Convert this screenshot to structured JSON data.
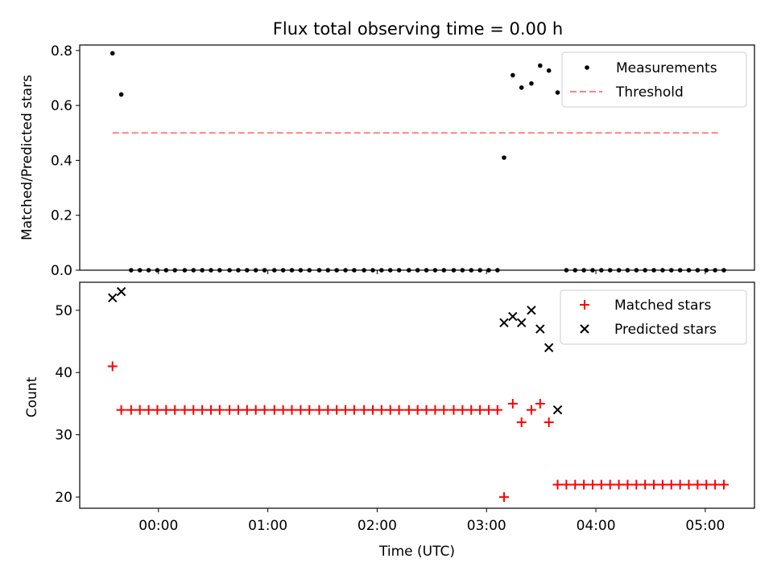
{
  "figure_title": "Flux total observing time = 0.00 h",
  "chart_data": [
    {
      "type": "scatter",
      "panel": "top",
      "title": "Flux total observing time = 0.00 h",
      "xlabel": "",
      "ylabel": "Matched/Predicted stars",
      "xlim": [
        -0.72,
        5.45
      ],
      "ylim": [
        0,
        0.82
      ],
      "yticks": [
        0.0,
        0.2,
        0.4,
        0.6,
        0.8
      ],
      "ytick_labels": [
        "0.0",
        "0.2",
        "0.4",
        "0.6",
        "0.8"
      ],
      "legend_position": "top-right",
      "series": [
        {
          "name": "Measurements",
          "marker": "dot",
          "color": "#000000",
          "x": [
            -0.42,
            -0.34,
            -0.25,
            -0.17,
            -0.09,
            -0.01,
            0.07,
            0.15,
            0.24,
            0.32,
            0.4,
            0.48,
            0.56,
            0.65,
            0.73,
            0.81,
            0.89,
            0.97,
            1.06,
            1.14,
            1.22,
            1.3,
            1.38,
            1.47,
            1.55,
            1.63,
            1.71,
            1.79,
            1.88,
            1.96,
            2.04,
            2.12,
            2.2,
            2.29,
            2.37,
            2.45,
            2.53,
            2.61,
            2.7,
            2.78,
            2.86,
            2.94,
            3.02,
            3.1,
            3.16,
            3.24,
            3.32,
            3.41,
            3.49,
            3.57,
            3.65,
            3.73,
            3.81,
            3.89,
            3.97,
            4.05,
            4.13,
            4.21,
            4.29,
            4.37,
            4.45,
            4.53,
            4.61,
            4.69,
            4.77,
            4.85,
            4.93,
            5.01,
            5.09,
            5.17
          ],
          "y": [
            0.79,
            0.64,
            0,
            0,
            0,
            0,
            0,
            0,
            0,
            0,
            0,
            0,
            0,
            0,
            0,
            0,
            0,
            0,
            0,
            0,
            0,
            0,
            0,
            0,
            0,
            0,
            0,
            0,
            0,
            0,
            0,
            0,
            0,
            0,
            0,
            0,
            0,
            0,
            0,
            0,
            0,
            0,
            0,
            0,
            0.41,
            0.71,
            0.665,
            0.68,
            0.745,
            0.727,
            0.647,
            0,
            0,
            0,
            0,
            0,
            0,
            0,
            0,
            0,
            0,
            0,
            0,
            0,
            0,
            0,
            0,
            0,
            0,
            0
          ]
        },
        {
          "name": "Threshold",
          "style": "dashed-line",
          "color": "#ff8080",
          "x": [
            -0.42,
            5.12
          ],
          "y": [
            0.5,
            0.5
          ]
        }
      ]
    },
    {
      "type": "scatter",
      "panel": "bottom",
      "xlabel": "Time (UTC)",
      "ylabel": "Count",
      "xlim": [
        -0.72,
        5.45
      ],
      "ylim": [
        18.2,
        54.5
      ],
      "yticks": [
        20,
        30,
        40,
        50
      ],
      "ytick_labels": [
        "20",
        "30",
        "40",
        "50"
      ],
      "xticks": [
        0,
        1,
        2,
        3,
        4,
        5
      ],
      "xtick_labels": [
        "00:00",
        "01:00",
        "02:00",
        "03:00",
        "04:00",
        "05:00"
      ],
      "legend_position": "top-right",
      "series": [
        {
          "name": "Matched stars",
          "marker": "plus",
          "color": "#ff0000",
          "x": [
            -0.42,
            -0.34,
            -0.25,
            -0.17,
            -0.09,
            -0.01,
            0.07,
            0.15,
            0.24,
            0.32,
            0.4,
            0.48,
            0.56,
            0.65,
            0.73,
            0.81,
            0.89,
            0.97,
            1.06,
            1.14,
            1.22,
            1.3,
            1.38,
            1.47,
            1.55,
            1.63,
            1.71,
            1.79,
            1.88,
            1.96,
            2.04,
            2.12,
            2.2,
            2.29,
            2.37,
            2.45,
            2.53,
            2.61,
            2.7,
            2.78,
            2.86,
            2.94,
            3.02,
            3.1,
            3.16,
            3.24,
            3.32,
            3.41,
            3.49,
            3.57,
            3.65,
            3.73,
            3.81,
            3.89,
            3.97,
            4.05,
            4.13,
            4.21,
            4.29,
            4.37,
            4.45,
            4.53,
            4.61,
            4.69,
            4.77,
            4.85,
            4.93,
            5.01,
            5.09,
            5.17
          ],
          "y": [
            41,
            34,
            34,
            34,
            34,
            34,
            34,
            34,
            34,
            34,
            34,
            34,
            34,
            34,
            34,
            34,
            34,
            34,
            34,
            34,
            34,
            34,
            34,
            34,
            34,
            34,
            34,
            34,
            34,
            34,
            34,
            34,
            34,
            34,
            34,
            34,
            34,
            34,
            34,
            34,
            34,
            34,
            34,
            34,
            20,
            35,
            32,
            34,
            35,
            32,
            22,
            22,
            22,
            22,
            22,
            22,
            22,
            22,
            22,
            22,
            22,
            22,
            22,
            22,
            22,
            22,
            22,
            22,
            22,
            22
          ]
        },
        {
          "name": "Predicted stars",
          "marker": "x",
          "color": "#000000",
          "x": [
            -0.42,
            -0.34,
            3.16,
            3.24,
            3.32,
            3.41,
            3.49,
            3.57,
            3.65
          ],
          "y": [
            52,
            53,
            48,
            49,
            48,
            50,
            47,
            44,
            34
          ]
        }
      ]
    }
  ]
}
